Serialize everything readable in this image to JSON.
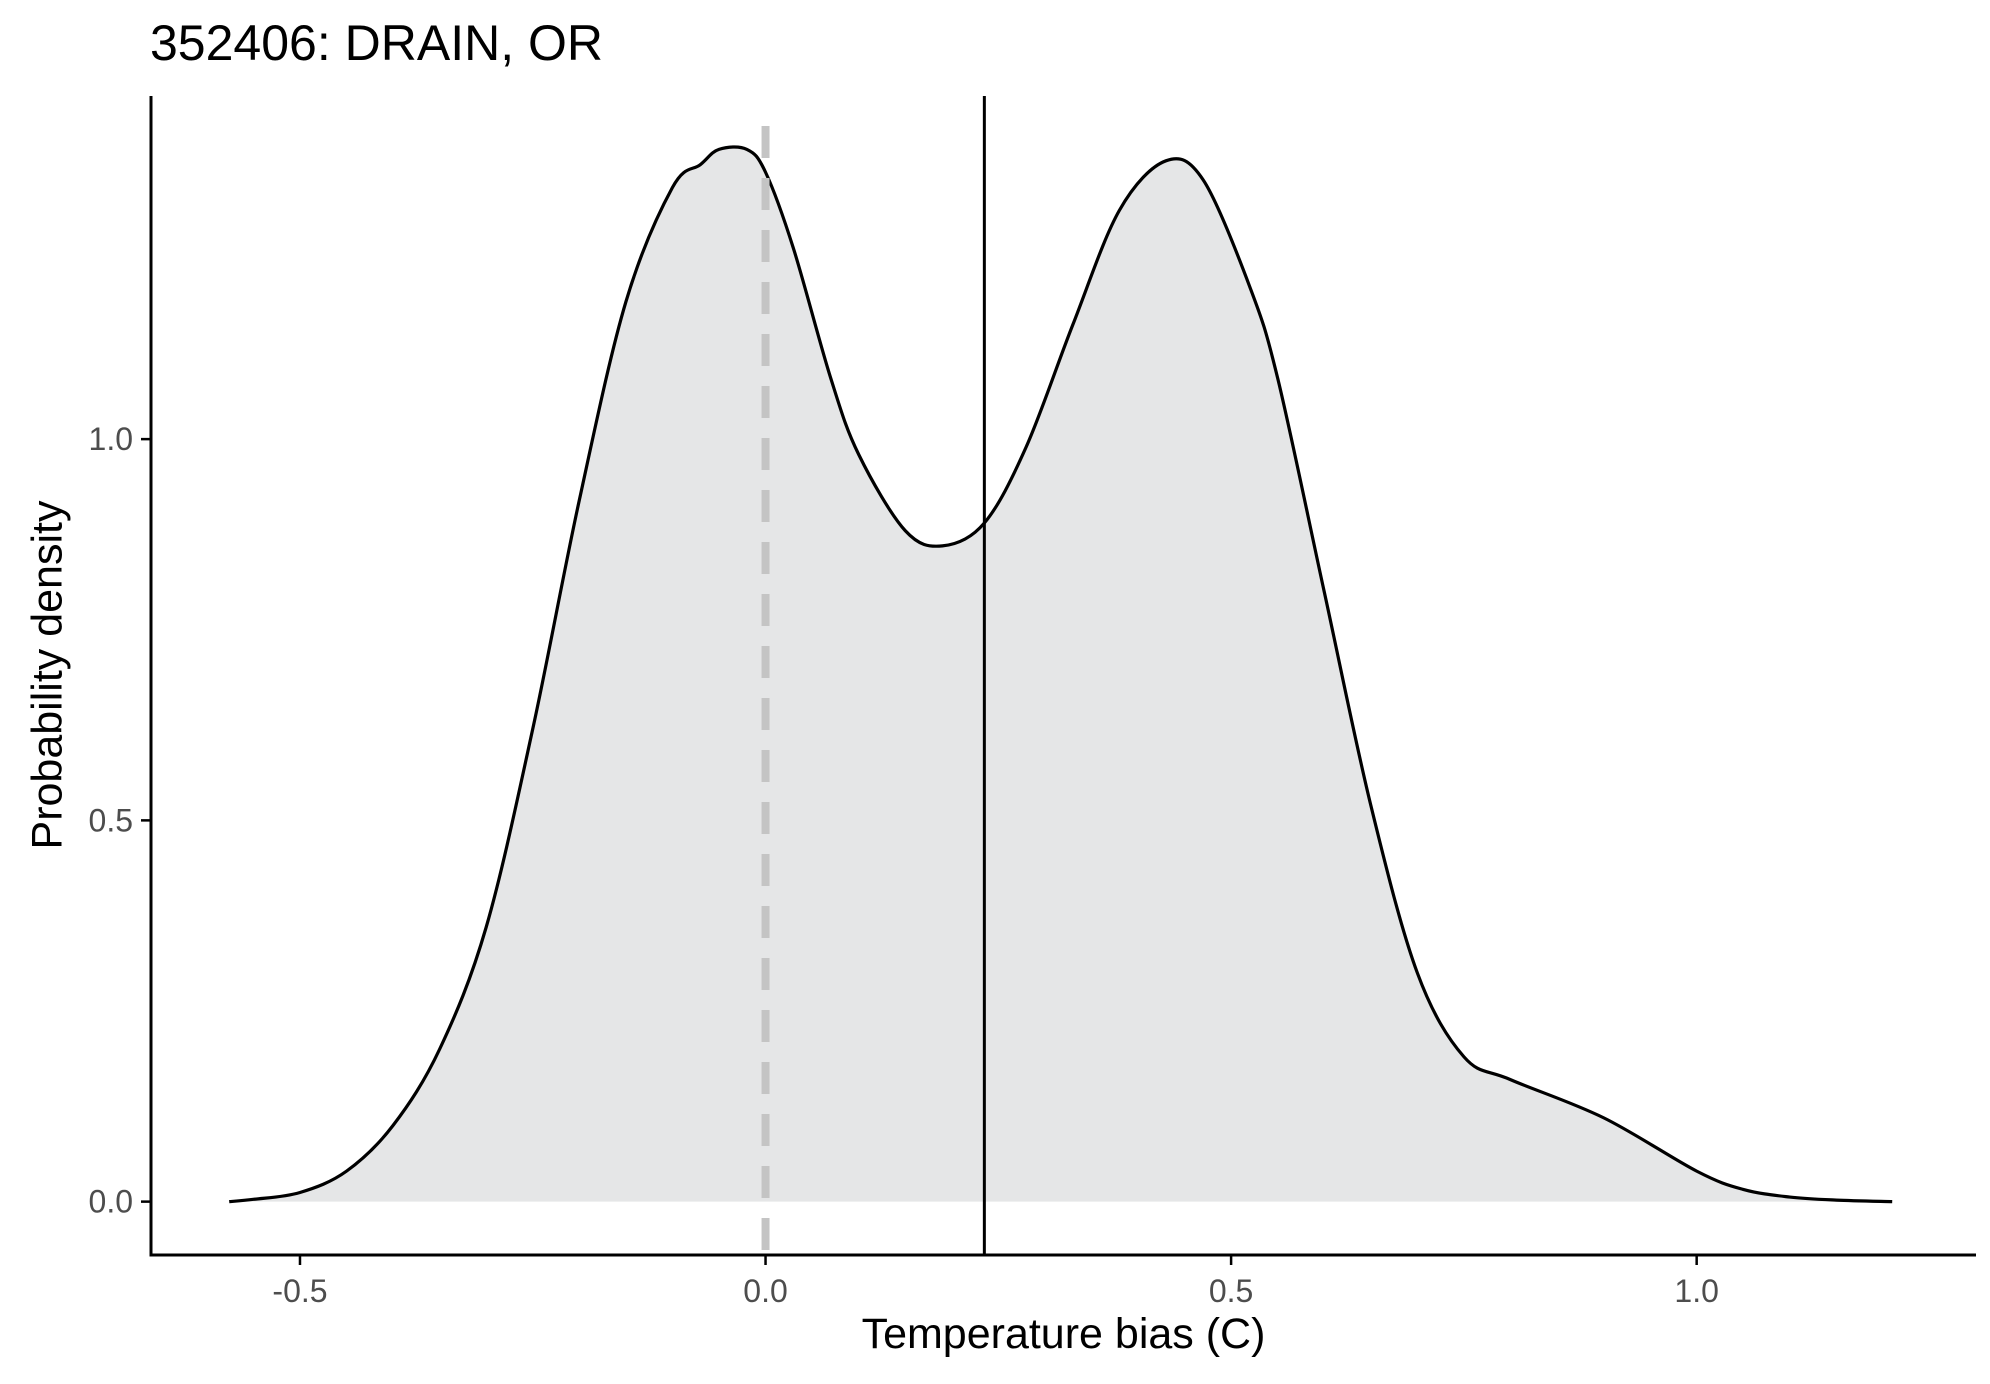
{
  "chart_data": {
    "type": "area",
    "title": "352406: DRAIN, OR",
    "xlabel": "Temperature bias (C)",
    "ylabel": "Probability density",
    "xlim": [
      -0.66,
      1.3
    ],
    "ylim": [
      -0.07,
      1.45
    ],
    "x_ticks": [
      -0.5,
      0.0,
      0.5,
      1.0
    ],
    "x_tick_labels": [
      "-0.5",
      "0.0",
      "0.5",
      "1.0"
    ],
    "y_ticks": [
      0.0,
      0.5,
      1.0
    ],
    "y_tick_labels": [
      "0.0",
      "0.5",
      "1.0"
    ],
    "grid": false,
    "legend": "none",
    "colors": {
      "fill": "#e5e6e7",
      "line": "#000000",
      "zero_line": "#c4c4c4",
      "axis": "#000000",
      "tick_text": "#4d4d4d"
    },
    "reference_lines": [
      {
        "x": 0.0,
        "style": "dashed"
      },
      {
        "x": 0.235,
        "style": "solid"
      }
    ],
    "series": [
      {
        "x": [
          -0.576,
          -0.55,
          -0.5,
          -0.45,
          -0.4,
          -0.35,
          -0.3,
          -0.25,
          -0.2,
          -0.15,
          -0.1,
          -0.07,
          -0.05,
          -0.02,
          0.0,
          0.03,
          0.07,
          0.1,
          0.15,
          0.19,
          0.235,
          0.28,
          0.33,
          0.38,
          0.43,
          0.47,
          0.52,
          0.55,
          0.6,
          0.65,
          0.7,
          0.75,
          0.8,
          0.9,
          1.0,
          1.05,
          1.1,
          1.15,
          1.21
        ],
        "y": [
          0.0,
          0.003,
          0.012,
          0.04,
          0.1,
          0.2,
          0.36,
          0.62,
          0.92,
          1.18,
          1.33,
          1.36,
          1.38,
          1.38,
          1.35,
          1.25,
          1.08,
          0.98,
          0.88,
          0.86,
          0.89,
          0.99,
          1.15,
          1.3,
          1.365,
          1.34,
          1.2,
          1.08,
          0.8,
          0.52,
          0.3,
          0.19,
          0.16,
          0.11,
          0.04,
          0.016,
          0.006,
          0.002,
          0.0
        ]
      }
    ]
  }
}
